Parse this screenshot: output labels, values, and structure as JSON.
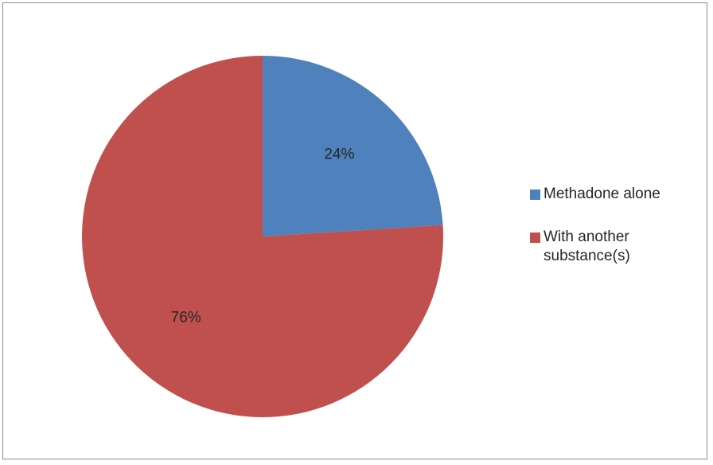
{
  "chart_data": {
    "type": "pie",
    "title": "",
    "slices": [
      {
        "label": "Methadone alone",
        "value": 24,
        "value_label": "24%",
        "color": "#4F81BD"
      },
      {
        "label": "With another substance(s)",
        "value": 76,
        "value_label": "76%",
        "color": "#C0504D"
      }
    ],
    "start_angle_deg": 0,
    "direction": "clockwise",
    "legend_position": "right"
  }
}
